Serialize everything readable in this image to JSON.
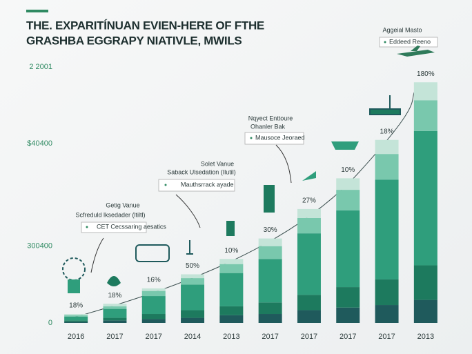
{
  "chart_data": {
    "type": "stacked_bar",
    "title": [
      "THE. EXPARITÍNUAN EVIEN-HERE OF FTHE",
      "GRASHBA EGGRAPY NIATIVLE, MWILS"
    ],
    "categories": [
      "2016",
      "2017",
      "2017",
      "2014",
      "2013",
      "2017",
      "2017",
      "2017",
      "2017",
      "2013"
    ],
    "series": [
      {
        "color": "#1f5a5c",
        "values": [
          0.5,
          1,
          1.5,
          2,
          3,
          3.5,
          5,
          6,
          7,
          9
        ]
      },
      {
        "color": "#1d7a5e",
        "values": [
          0.5,
          1,
          2,
          3,
          3.5,
          4.5,
          6,
          8,
          10,
          13.5
        ]
      },
      {
        "color": "#2f9e7c",
        "values": [
          1.5,
          3.5,
          7,
          10,
          13,
          17,
          24,
          30,
          39,
          52.5
        ]
      },
      {
        "color": "#79c8ad",
        "values": [
          0.5,
          1,
          2,
          2.5,
          3.5,
          5,
          6,
          8,
          10,
          12
        ]
      },
      {
        "color": "#c4e4d8",
        "values": [
          0.5,
          1,
          1,
          1.5,
          2,
          3,
          3.5,
          4.5,
          5.5,
          7
        ]
      }
    ],
    "bar_labels": [
      "18%",
      "18%",
      "16%",
      "50%",
      "10%",
      "30%",
      "27%",
      "10%",
      "18%",
      "180%"
    ],
    "ylim": [
      0,
      100
    ],
    "yticks": [
      0,
      {
        "value": 30,
        "label": "300400"
      },
      {
        "value": 70,
        "label": "$40400"
      },
      {
        "value": 100,
        "label": "2 2001"
      }
    ],
    "grid": false,
    "callouts": [
      {
        "heading": [
          "Aggeial Masto"
        ],
        "box": "Eddeed Reeno"
      },
      {
        "heading": [
          "Nqyect Enttoure",
          "Ohanler Bak"
        ],
        "box": "Mausoce Jeoraed"
      },
      {
        "heading": [
          "Solet Vanue",
          "Saback Ulsedation (Ilutil)"
        ],
        "box": "Mauthsrrack ayade"
      },
      {
        "heading": [
          "Getig Vanue",
          "Scfreduld lksedader (ltiltl)"
        ],
        "box": "CET Cecssaring aesatics"
      }
    ]
  }
}
